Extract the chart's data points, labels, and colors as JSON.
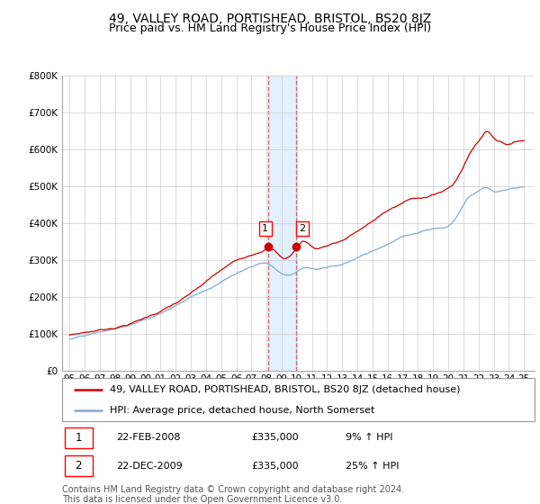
{
  "title": "49, VALLEY ROAD, PORTISHEAD, BRISTOL, BS20 8JZ",
  "subtitle": "Price paid vs. HM Land Registry's House Price Index (HPI)",
  "legend_property_label": "49, VALLEY ROAD, PORTISHEAD, BRISTOL, BS20 8JZ (detached house)",
  "legend_hpi_label": "HPI: Average price, detached house, North Somerset",
  "annotation1_label": "1",
  "annotation1_date": "22-FEB-2008",
  "annotation1_price": "£335,000",
  "annotation1_hpi": "9% ↑ HPI",
  "annotation2_label": "2",
  "annotation2_date": "22-DEC-2009",
  "annotation2_price": "£335,000",
  "annotation2_hpi": "25% ↑ HPI",
  "footer": "Contains HM Land Registry data © Crown copyright and database right 2024.\nThis data is licensed under the Open Government Licence v3.0.",
  "sale1_year": 2008.12,
  "sale1_y": 335000,
  "sale2_year": 2009.97,
  "sale2_y": 335000,
  "property_color": "#cc0000",
  "hpi_color": "#88aacc",
  "shade_color": "#ddeeff",
  "dash_color": "#cc6666",
  "marker_color": "#cc0000",
  "ylim": [
    0,
    800000
  ],
  "xlim": [
    1994.5,
    2025.7
  ],
  "yticks": [
    0,
    100000,
    200000,
    300000,
    400000,
    500000,
    600000,
    700000,
    800000
  ],
  "ytick_labels": [
    "£0",
    "£100K",
    "£200K",
    "£300K",
    "£400K",
    "£500K",
    "£600K",
    "£700K",
    "£800K"
  ],
  "title_fontsize": 10,
  "subtitle_fontsize": 9,
  "tick_fontsize": 7.5,
  "legend_fontsize": 8,
  "annot_fontsize": 8,
  "footer_fontsize": 7
}
